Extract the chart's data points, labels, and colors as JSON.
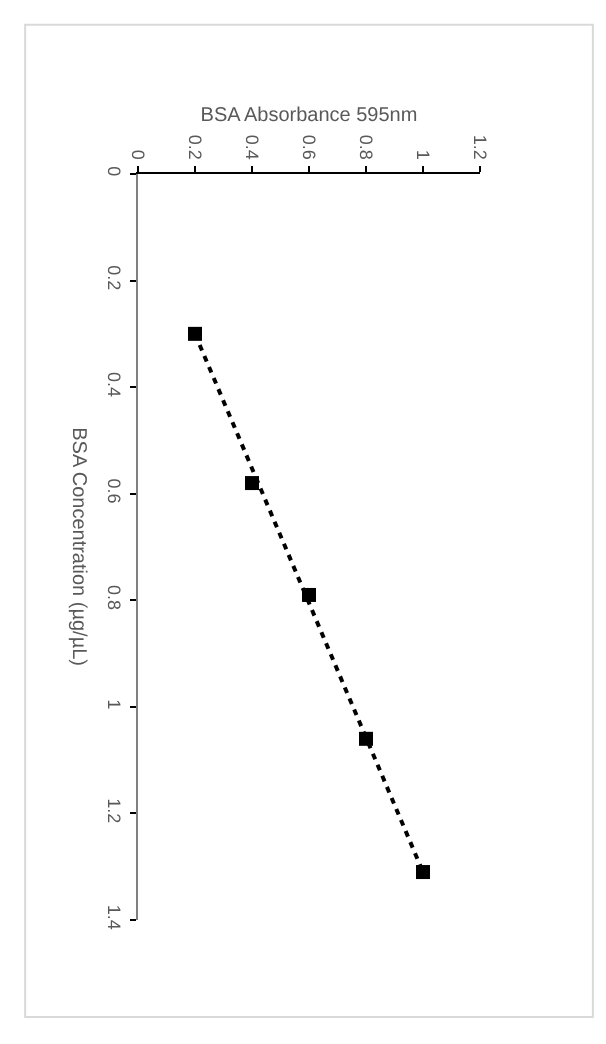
{
  "chart_data": {
    "type": "scatter",
    "xlabel": "BSA Absorbance 595nm",
    "ylabel": "BSA Concentration (µg/µL)",
    "series": [
      {
        "x": [
          0.2,
          0.4,
          0.6,
          0.8,
          1.0
        ],
        "values": [
          0.3,
          0.58,
          0.79,
          1.06,
          1.31
        ],
        "color": "#000000",
        "marker": "square"
      },
      {
        "type": "line",
        "x": [
          0.2,
          1.0
        ],
        "values": [
          0.3,
          1.31
        ],
        "color": "#000000",
        "line_style": "dotted",
        "marker": "none"
      }
    ],
    "xlim": [
      0,
      1.2
    ],
    "xticks": [
      0,
      0.2,
      0.4,
      0.6,
      0.8,
      1,
      1.2
    ],
    "ylim": [
      1.4,
      0
    ],
    "yticks": [
      0,
      0.2,
      0.4,
      0.6,
      0.8,
      1,
      1.2,
      1.4
    ]
  }
}
